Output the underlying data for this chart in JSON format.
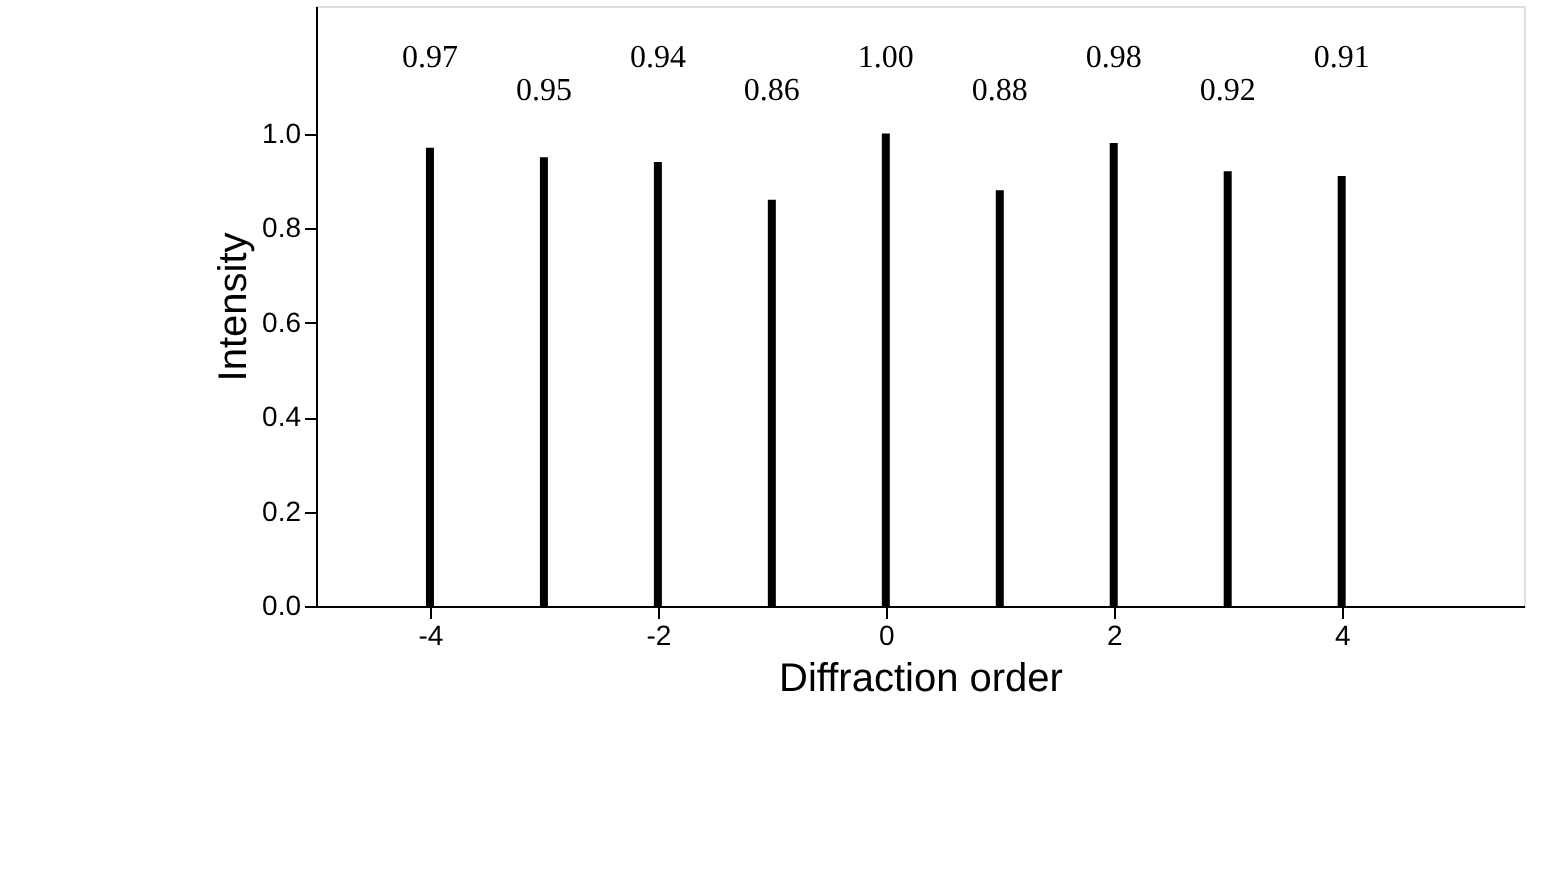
{
  "chart_data": {
    "type": "bar",
    "xlabel": "Diffraction order",
    "ylabel": "Intensity",
    "x": [
      -4,
      -3,
      -2,
      -1,
      0,
      1,
      2,
      3,
      4
    ],
    "values": [
      0.97,
      0.95,
      0.94,
      0.86,
      1.0,
      0.88,
      0.98,
      0.92,
      0.91
    ],
    "value_labels": [
      "0.97",
      "0.95",
      "0.94",
      "0.86",
      "1.00",
      "0.88",
      "0.98",
      "0.92",
      "0.91"
    ],
    "color": "#000000",
    "xlim": [
      -5,
      5.6
    ],
    "xticks": [
      -4,
      -2,
      0,
      2,
      4
    ],
    "ylim": [
      0,
      1.27
    ],
    "yticks": [
      {
        "value": 0,
        "label": "0.0"
      },
      {
        "value": 0.2,
        "label": "0.2"
      },
      {
        "value": 0.4,
        "label": "0.4"
      },
      {
        "value": 0.6,
        "label": "0.6"
      },
      {
        "value": 0.8,
        "label": "0.8"
      },
      {
        "value": 1.0,
        "label": "1.0"
      }
    ],
    "grid": false
  }
}
